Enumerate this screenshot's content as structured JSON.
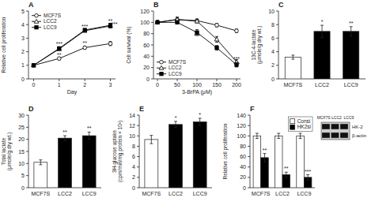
{
  "chart_data": [
    {
      "type": "line",
      "title": "A",
      "xlabel": "Day",
      "ylabel": "Relative cell proliferation",
      "x": [
        0,
        1,
        2,
        3
      ],
      "series": [
        {
          "name": "MCF7S",
          "color": "black",
          "marker": "circle-open",
          "values": [
            1.0,
            1.5,
            2.3,
            2.6
          ],
          "errors": [
            0,
            0.1,
            0.1,
            0.15
          ]
        },
        {
          "name": "LCC2",
          "color": "black",
          "marker": "triangle-open",
          "values": [
            1.0,
            2.2,
            3.55,
            3.9
          ],
          "errors": [
            0,
            0.1,
            0.1,
            0.15
          ]
        },
        {
          "name": "LCC9",
          "color": "black",
          "marker": "square",
          "values": [
            1.0,
            2.25,
            3.6,
            3.95
          ],
          "errors": [
            0,
            0.1,
            0.1,
            0.15
          ]
        }
      ],
      "xlim": [
        -0.2,
        3.2
      ],
      "xticks": [
        0,
        1,
        2,
        3
      ],
      "ylim": [
        0,
        5
      ],
      "yticks": [
        0,
        1,
        2,
        3,
        4,
        5
      ],
      "legend": "upper left",
      "grid": false,
      "annotations": [
        {
          "text": "***",
          "x": 1,
          "y": 2.42
        },
        {
          "text": "**",
          "x": 1,
          "y": 1.65
        },
        {
          "text": "***",
          "x": 2,
          "y": 3.72
        },
        {
          "text": "**",
          "x": 2,
          "y": 2.48
        },
        {
          "text": "**",
          "x": 3,
          "y": 4.12
        },
        {
          "text": "***",
          "x": 3.15,
          "y": 3.88
        }
      ]
    },
    {
      "type": "line",
      "title": "B",
      "xlabel": "3-BrPA (μM)",
      "ylabel": "Cell survival (%)",
      "x": [
        0,
        50,
        100,
        150,
        200
      ],
      "series": [
        {
          "name": "MCF7S",
          "color": "black",
          "marker": "circle-open",
          "values": [
            100,
            105,
            103,
            95,
            85
          ],
          "errors": [
            3,
            4,
            3,
            3,
            3
          ]
        },
        {
          "name": "LCC2",
          "color": "black",
          "marker": "triangle-open",
          "values": [
            100,
            105,
            102,
            70,
            30
          ],
          "errors": [
            3,
            4,
            3,
            5,
            4
          ]
        },
        {
          "name": "LCC9",
          "color": "black",
          "marker": "square",
          "values": [
            100,
            100,
            82,
            55,
            25
          ],
          "errors": [
            3,
            3,
            5,
            4,
            4
          ]
        }
      ],
      "xlim": [
        -10,
        210
      ],
      "xticks": [
        0,
        50,
        100,
        150,
        200
      ],
      "ylim": [
        0,
        120
      ],
      "yticks": [
        0,
        20,
        40,
        60,
        80,
        100,
        120
      ],
      "legend": "lower left",
      "grid": false,
      "annotations": [
        {
          "text": "***",
          "x": 100,
          "y": 72
        },
        {
          "text": "***",
          "x": 200,
          "y": 32
        },
        {
          "text": "***",
          "x": 200,
          "y": 22
        }
      ]
    },
    {
      "type": "bar",
      "title": "C",
      "ylabel": "13C-4-lactate\n(μmole/g dry wt.)",
      "categories": [
        "MCF7S",
        "LCC2",
        "LCC9"
      ],
      "values": [
        3.2,
        7.0,
        7.0
      ],
      "errors": [
        0.3,
        0.9,
        0.7
      ],
      "colors": [
        "white",
        "black",
        "black"
      ],
      "ylim": [
        0,
        10
      ],
      "yticks": [
        0,
        2,
        4,
        6,
        8,
        10
      ],
      "grid": false,
      "annotations": [
        {
          "text": "*",
          "x": "LCC2"
        },
        {
          "text": "**",
          "x": "LCC9"
        }
      ]
    },
    {
      "type": "bar",
      "title": "D",
      "ylabel": "Total lactate\n(μmole/g dry wt.)",
      "categories": [
        "MCF7S",
        "LCC2",
        "LCC9"
      ],
      "values": [
        10.5,
        20.5,
        21.5
      ],
      "errors": [
        1.0,
        1.0,
        1.5
      ],
      "colors": [
        "white",
        "black",
        "black"
      ],
      "ylim": [
        0,
        30
      ],
      "yticks": [
        0,
        5,
        10,
        15,
        20,
        25,
        30
      ],
      "grid": false,
      "annotations": [
        {
          "text": "**",
          "x": "LCC2"
        },
        {
          "text": "**",
          "x": "LCC9"
        }
      ]
    },
    {
      "type": "bar",
      "title": "E",
      "ylabel": "3H-glucose uptake\n(cpm/min/mg protein × 10³)",
      "categories": [
        "MCF7S",
        "LCC2",
        "LCC9"
      ],
      "values": [
        9.3,
        12.2,
        12.7
      ],
      "errors": [
        0.8,
        0.6,
        0.7
      ],
      "colors": [
        "white",
        "black",
        "black"
      ],
      "ylim": [
        0,
        14
      ],
      "yticks": [
        0,
        2,
        4,
        6,
        8,
        10,
        12,
        14
      ],
      "grid": false,
      "annotations": [
        {
          "text": "*",
          "x": "LCC2"
        },
        {
          "text": "*",
          "x": "LCC9"
        }
      ]
    },
    {
      "type": "bar",
      "title": "F",
      "ylabel": "Relative cell proliferation",
      "categories": [
        "MCF7S",
        "LCC2",
        "LCC9"
      ],
      "series": [
        {
          "name": "Consi",
          "color": "white",
          "values": [
            100,
            100,
            100
          ],
          "errors": [
            5,
            5,
            5
          ]
        },
        {
          "name": "HK2si",
          "color": "black",
          "values": [
            58,
            25,
            20
          ],
          "errors": [
            8,
            5,
            5
          ]
        }
      ],
      "ylim": [
        0,
        140
      ],
      "yticks": [
        0,
        20,
        40,
        60,
        80,
        100,
        120,
        140
      ],
      "legend": "upper right",
      "grid": false,
      "annotations": [
        {
          "text": "**",
          "x": "MCF7S",
          "series": "HK2si"
        },
        {
          "text": "**",
          "x": "LCC2",
          "series": "HK2si"
        },
        {
          "text": "***",
          "x": "LCC9",
          "series": "HK2si"
        }
      ],
      "inset": {
        "title": "MCF7S LCC2  LCC9",
        "rows": [
          "HK-2",
          "β-actin"
        ]
      }
    }
  ]
}
